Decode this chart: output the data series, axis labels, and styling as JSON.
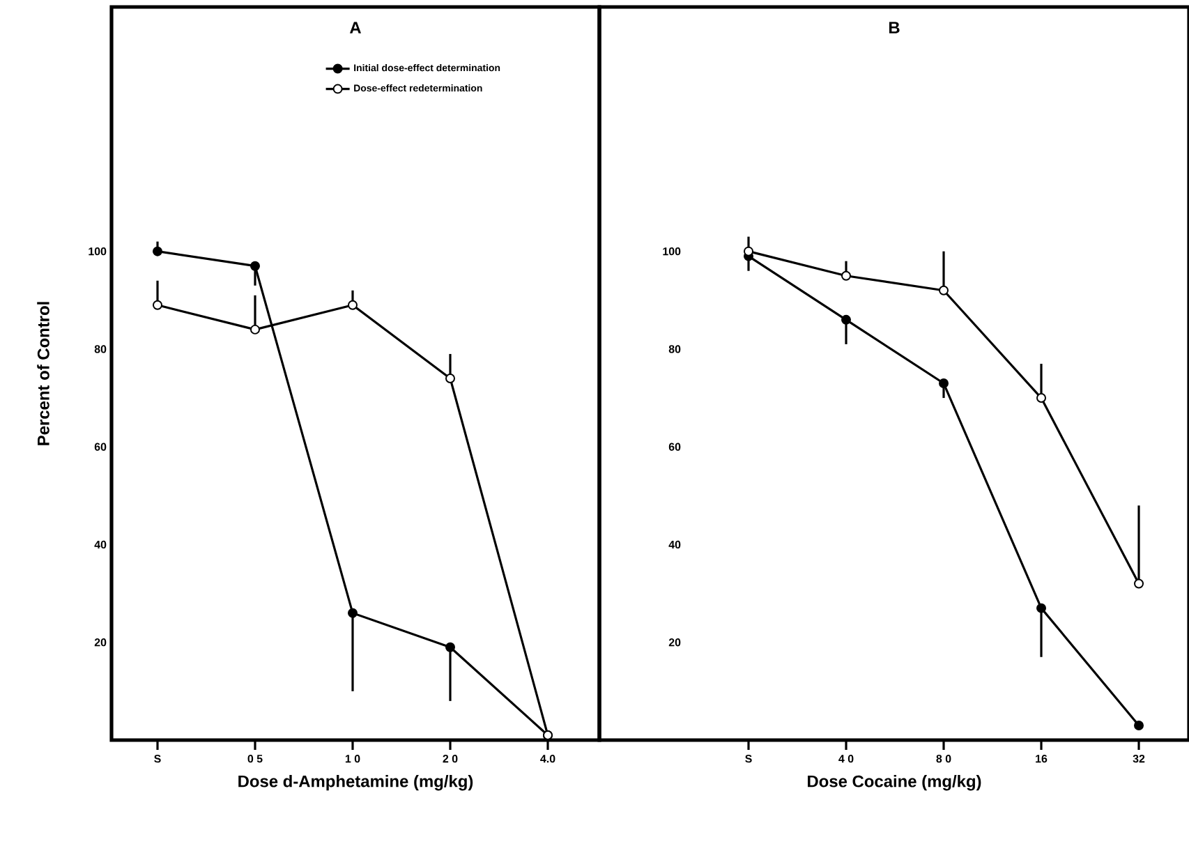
{
  "chart_data": [
    {
      "type": "line",
      "title": "A",
      "xlabel": "Dose  d-Amphetamine  (mg/kg)",
      "ylabel": "Percent of Control",
      "categories": [
        "S",
        "0 5",
        "1 0",
        "2 0",
        "4.0"
      ],
      "ylim": [
        0,
        150
      ],
      "yticks": [
        20,
        40,
        60,
        80,
        100
      ],
      "legend": "top",
      "marker": "circle",
      "series": [
        {
          "name": "Initial dose-effect determination",
          "color": "#000000",
          "values": [
            100,
            97,
            26,
            19,
            1
          ],
          "errors": [
            [
              100,
              102
            ],
            [
              93,
              97
            ],
            [
              10,
              26
            ],
            [
              8,
              19
            ],
            null
          ]
        },
        {
          "name": "Dose-effect redetermination",
          "color": "#000000",
          "values": [
            89,
            84,
            89,
            74,
            1
          ],
          "errors": [
            [
              89,
              94
            ],
            [
              84,
              91
            ],
            [
              89,
              92
            ],
            [
              74,
              79
            ],
            null
          ]
        }
      ]
    },
    {
      "type": "line",
      "title": "B",
      "xlabel": "Dose  Cocaine  (mg/kg)",
      "categories": [
        "S",
        "4 0",
        "8 0",
        "16",
        "32"
      ],
      "ylim": [
        0,
        150
      ],
      "yticks": [
        20,
        40,
        60,
        80,
        100
      ],
      "marker": "circle",
      "series": [
        {
          "color": "#000000",
          "values": [
            99,
            86,
            73,
            27,
            3
          ],
          "errors": [
            [
              96,
              103
            ],
            [
              81,
              86
            ],
            [
              70,
              73
            ],
            [
              17,
              27
            ],
            null
          ]
        },
        {
          "color": "#000000",
          "values": [
            100,
            95,
            92,
            70,
            32
          ],
          "errors": [
            null,
            [
              95,
              98
            ],
            [
              92,
              100
            ],
            [
              70,
              77
            ],
            [
              32,
              48
            ]
          ]
        }
      ]
    }
  ]
}
